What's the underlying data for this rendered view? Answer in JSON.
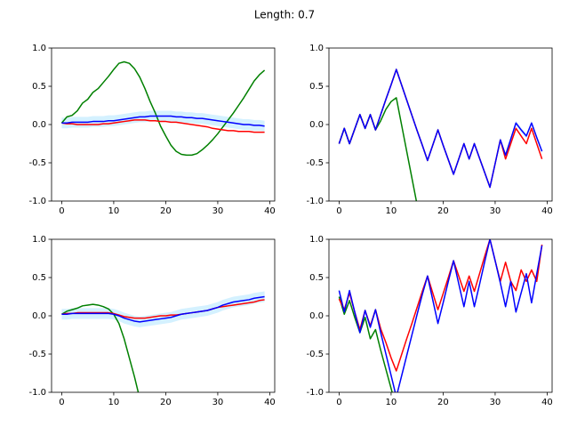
{
  "title": "Length: 0.7",
  "chart_data": [
    {
      "type": "line",
      "xlim": [
        -1.95,
        40.95
      ],
      "xticks": [
        0,
        10,
        20,
        30,
        40
      ],
      "ylim": [
        -1,
        1
      ],
      "yticks": [
        {
          "value": -1,
          "label": "-1.0"
        },
        -0.5,
        {
          "value": 0,
          "label": "0.0"
        },
        0.5,
        {
          "value": 1,
          "label": "1.0"
        }
      ],
      "x": [
        0,
        1,
        2,
        3,
        4,
        5,
        6,
        7,
        8,
        9,
        10,
        11,
        12,
        13,
        14,
        15,
        16,
        17,
        18,
        19,
        20,
        21,
        22,
        23,
        24,
        25,
        26,
        27,
        28,
        29,
        30,
        31,
        32,
        33,
        34,
        35,
        36,
        37,
        38,
        39
      ],
      "band": {
        "color": "#d4f1ff",
        "halfwidth": 0.07
      },
      "series": [
        {
          "color": "#ff0000",
          "values": [
            0.02,
            0.01,
            0.01,
            0.0,
            0.0,
            0.0,
            0.0,
            0.0,
            0.01,
            0.01,
            0.02,
            0.03,
            0.04,
            0.05,
            0.06,
            0.06,
            0.06,
            0.05,
            0.05,
            0.04,
            0.04,
            0.03,
            0.03,
            0.02,
            0.01,
            0.0,
            -0.01,
            -0.02,
            -0.03,
            -0.05,
            -0.06,
            -0.07,
            -0.08,
            -0.08,
            -0.09,
            -0.09,
            -0.09,
            -0.1,
            -0.1,
            -0.1
          ]
        },
        {
          "color": "#0000ff",
          "values": [
            0.02,
            0.02,
            0.03,
            0.03,
            0.03,
            0.03,
            0.04,
            0.04,
            0.04,
            0.05,
            0.05,
            0.06,
            0.07,
            0.08,
            0.09,
            0.1,
            0.1,
            0.11,
            0.11,
            0.11,
            0.11,
            0.11,
            0.1,
            0.1,
            0.09,
            0.09,
            0.08,
            0.08,
            0.07,
            0.06,
            0.05,
            0.04,
            0.03,
            0.02,
            0.01,
            0.0,
            0.0,
            -0.01,
            -0.01,
            -0.02
          ]
        },
        {
          "color": "#008000",
          "values": [
            0.02,
            0.1,
            0.12,
            0.18,
            0.28,
            0.33,
            0.42,
            0.47,
            0.55,
            0.63,
            0.72,
            0.8,
            0.82,
            0.8,
            0.73,
            0.62,
            0.47,
            0.3,
            0.15,
            -0.02,
            -0.15,
            -0.27,
            -0.35,
            -0.39,
            -0.4,
            -0.4,
            -0.38,
            -0.33,
            -0.27,
            -0.2,
            -0.12,
            -0.03,
            0.06,
            0.15,
            0.25,
            0.35,
            0.46,
            0.57,
            0.65,
            0.71
          ]
        }
      ]
    },
    {
      "type": "line",
      "xlim": [
        -1.95,
        40.95
      ],
      "xticks": [
        0,
        10,
        20,
        30,
        40
      ],
      "ylim": [
        -1,
        1
      ],
      "yticks": [
        {
          "value": -1,
          "label": "-1.0"
        },
        -0.5,
        {
          "value": 0,
          "label": "0.0"
        },
        0.5,
        {
          "value": 1,
          "label": "1.0"
        }
      ],
      "x": [
        0,
        1,
        2,
        3,
        4,
        5,
        6,
        7,
        8,
        9,
        10,
        11,
        12,
        13,
        14,
        15,
        16,
        17,
        18,
        19,
        20,
        21,
        22,
        23,
        24,
        25,
        26,
        27,
        28,
        29,
        30,
        31,
        32,
        33,
        34,
        35,
        36,
        37,
        38,
        39
      ],
      "band": {
        "color": "#d4f1ff",
        "halfwidth": 0.03
      },
      "series": [
        {
          "color": "#ff0000",
          "values": [
            -0.25,
            -0.05,
            -0.25,
            -0.06,
            0.13,
            -0.05,
            0.13,
            -0.07,
            0.13,
            0.33,
            0.52,
            0.72,
            0.52,
            0.32,
            0.12,
            -0.08,
            -0.27,
            -0.47,
            -0.27,
            -0.07,
            -0.27,
            -0.46,
            -0.65,
            -0.45,
            -0.25,
            -0.45,
            -0.25,
            -0.44,
            -0.63,
            -0.82,
            -0.51,
            -0.2,
            -0.45,
            -0.25,
            -0.05,
            -0.15,
            -0.25,
            -0.05,
            -0.25,
            -0.45
          ]
        },
        {
          "color": "#0000ff",
          "values": [
            -0.25,
            -0.05,
            -0.25,
            -0.06,
            0.13,
            -0.05,
            0.13,
            -0.07,
            0.13,
            0.33,
            0.52,
            0.72,
            0.52,
            0.32,
            0.12,
            -0.08,
            -0.27,
            -0.47,
            -0.27,
            -0.07,
            -0.27,
            -0.46,
            -0.65,
            -0.45,
            -0.25,
            -0.45,
            -0.25,
            -0.44,
            -0.63,
            -0.82,
            -0.51,
            -0.2,
            -0.4,
            -0.19,
            0.02,
            -0.07,
            -0.15,
            0.02,
            -0.17,
            -0.35
          ]
        },
        {
          "color": "#008000",
          "values": [
            -0.25,
            -0.05,
            -0.25,
            -0.06,
            0.13,
            -0.05,
            0.13,
            -0.07,
            0.05,
            0.2,
            0.3,
            0.35,
            0.0,
            -0.35,
            -0.7,
            -1.05,
            null,
            null,
            null,
            null,
            null,
            null,
            null,
            null,
            null,
            null,
            null,
            null,
            null,
            null,
            null,
            null,
            null,
            null,
            null,
            null,
            null,
            null,
            null,
            null
          ]
        }
      ]
    },
    {
      "type": "line",
      "xlim": [
        -1.95,
        40.95
      ],
      "xticks": [
        0,
        10,
        20,
        30,
        40
      ],
      "ylim": [
        -1,
        1
      ],
      "yticks": [
        {
          "value": -1,
          "label": "-1.0"
        },
        -0.5,
        {
          "value": 0,
          "label": "0.0"
        },
        0.5,
        {
          "value": 1,
          "label": "1.0"
        }
      ],
      "x": [
        0,
        1,
        2,
        3,
        4,
        5,
        6,
        7,
        8,
        9,
        10,
        11,
        12,
        13,
        14,
        15,
        16,
        17,
        18,
        19,
        20,
        21,
        22,
        23,
        24,
        25,
        26,
        27,
        28,
        29,
        30,
        31,
        32,
        33,
        34,
        35,
        36,
        37,
        38,
        39
      ],
      "band": {
        "color": "#d4f1ff",
        "halfwidth": 0.07
      },
      "series": [
        {
          "color": "#ff0000",
          "values": [
            0.02,
            0.03,
            0.03,
            0.04,
            0.04,
            0.04,
            0.04,
            0.04,
            0.04,
            0.04,
            0.03,
            0.01,
            -0.01,
            -0.02,
            -0.03,
            -0.03,
            -0.03,
            -0.02,
            -0.01,
            0.0,
            0.0,
            0.01,
            0.01,
            0.02,
            0.03,
            0.04,
            0.05,
            0.06,
            0.07,
            0.09,
            0.11,
            0.12,
            0.13,
            0.14,
            0.15,
            0.16,
            0.17,
            0.18,
            0.2,
            0.21
          ]
        },
        {
          "color": "#0000ff",
          "values": [
            0.02,
            0.02,
            0.03,
            0.03,
            0.03,
            0.03,
            0.03,
            0.03,
            0.03,
            0.03,
            0.02,
            0.0,
            -0.03,
            -0.05,
            -0.07,
            -0.08,
            -0.07,
            -0.06,
            -0.05,
            -0.04,
            -0.03,
            -0.02,
            0.0,
            0.02,
            0.03,
            0.04,
            0.05,
            0.06,
            0.07,
            0.09,
            0.11,
            0.14,
            0.16,
            0.18,
            0.19,
            0.2,
            0.21,
            0.23,
            0.24,
            0.25
          ]
        },
        {
          "color": "#008000",
          "values": [
            0.02,
            0.06,
            0.08,
            0.1,
            0.13,
            0.14,
            0.15,
            0.14,
            0.12,
            0.09,
            0.02,
            -0.1,
            -0.3,
            -0.55,
            -0.8,
            -1.08,
            null,
            null,
            null,
            null,
            null,
            null,
            null,
            null,
            null,
            null,
            null,
            null,
            null,
            null,
            null,
            null,
            null,
            null,
            null,
            null,
            null,
            null,
            null,
            null
          ]
        }
      ]
    },
    {
      "type": "line",
      "xlim": [
        -1.95,
        40.95
      ],
      "xticks": [
        0,
        10,
        20,
        30,
        40
      ],
      "ylim": [
        -1,
        1
      ],
      "yticks": [
        {
          "value": -1,
          "label": "-1.0"
        },
        -0.5,
        {
          "value": 0,
          "label": "0.0"
        },
        0.5,
        {
          "value": 1,
          "label": "1.0"
        }
      ],
      "x": [
        0,
        1,
        2,
        3,
        4,
        5,
        6,
        7,
        8,
        9,
        10,
        11,
        12,
        13,
        14,
        15,
        16,
        17,
        18,
        19,
        20,
        21,
        22,
        23,
        24,
        25,
        26,
        27,
        28,
        29,
        30,
        31,
        32,
        33,
        34,
        35,
        36,
        37,
        38,
        39
      ],
      "band": {
        "color": "#d4f1ff",
        "halfwidth": 0.03
      },
      "series": [
        {
          "color": "#ff0000",
          "values": [
            0.22,
            0.08,
            0.3,
            0.05,
            -0.18,
            0.07,
            -0.13,
            0.08,
            -0.17,
            -0.35,
            -0.55,
            -0.72,
            -0.51,
            -0.3,
            -0.1,
            0.11,
            0.32,
            0.52,
            0.3,
            0.08,
            0.29,
            0.5,
            0.72,
            0.52,
            0.32,
            0.52,
            0.32,
            0.55,
            0.78,
            1.0,
            0.72,
            0.45,
            0.7,
            0.45,
            0.33,
            0.6,
            0.45,
            0.6,
            0.45,
            0.93
          ]
        },
        {
          "color": "#0000ff",
          "values": [
            0.33,
            0.05,
            0.33,
            0.05,
            -0.22,
            0.07,
            -0.15,
            0.08,
            -0.22,
            -0.5,
            -0.78,
            -1.06,
            -0.79,
            -0.52,
            -0.25,
            0.02,
            0.28,
            0.52,
            0.21,
            -0.1,
            0.17,
            0.45,
            0.72,
            0.42,
            0.12,
            0.45,
            0.12,
            0.41,
            0.71,
            1.0,
            0.72,
            0.43,
            0.12,
            0.45,
            0.05,
            0.3,
            0.55,
            0.17,
            0.55,
            0.92
          ]
        },
        {
          "color": "#008000",
          "values": [
            0.25,
            0.02,
            0.2,
            -0.02,
            -0.22,
            -0.02,
            -0.3,
            -0.18,
            -0.45,
            -0.7,
            -0.95,
            -1.2,
            null,
            null,
            null,
            null,
            null,
            null,
            null,
            null,
            null,
            null,
            null,
            null,
            null,
            null,
            null,
            null,
            null,
            null,
            null,
            null,
            null,
            null,
            null,
            null,
            null,
            null,
            null,
            null
          ]
        }
      ]
    }
  ]
}
